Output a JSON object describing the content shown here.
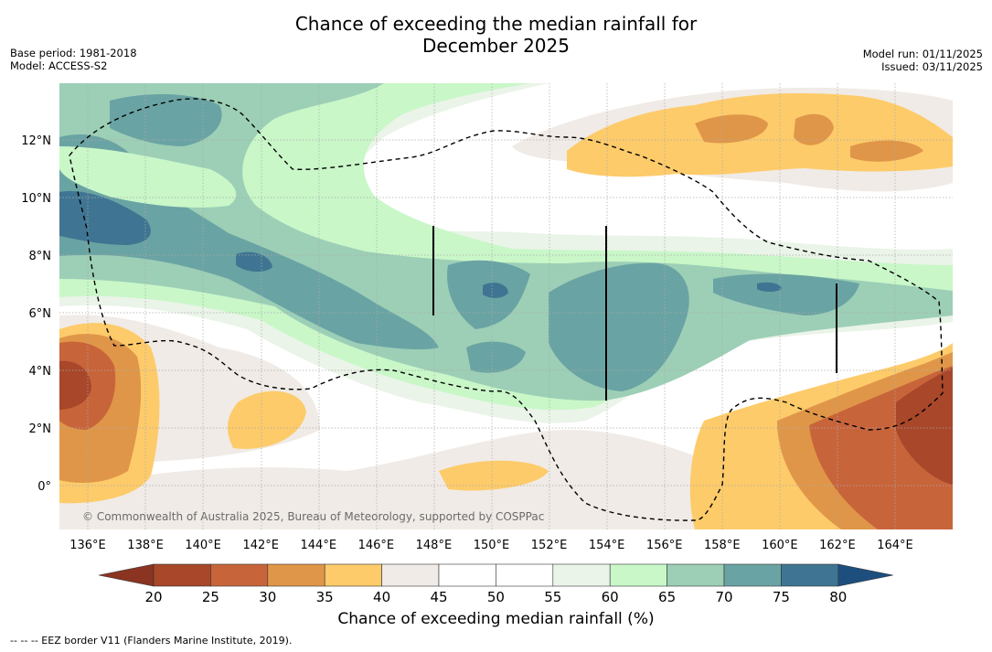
{
  "title_line1": "Chance of exceeding the median rainfall for",
  "title_line2": "December 2025",
  "base_period": "Base period: 1981-2018",
  "model": "Model: ACCESS-S2",
  "model_run": "Model run: 01/11/2025",
  "issued": "Issued: 03/11/2025",
  "copyright": "© Commonwealth of Australia 2025, Bureau of Meteorology, supported by COSPPac",
  "colorbar_label": "Chance of exceeding median rainfall (%)",
  "footnote": "-- -- -- EEZ border V11 (Flanders Marine Institute, 2019).",
  "lon_labels": [
    "136°E",
    "138°E",
    "140°E",
    "142°E",
    "144°E",
    "146°E",
    "148°E",
    "150°E",
    "152°E",
    "154°E",
    "156°E",
    "158°E",
    "160°E",
    "162°E",
    "164°E"
  ],
  "lat_labels": [
    "12°N",
    "10°N",
    "8°N",
    "6°N",
    "4°N",
    "2°N",
    "0°"
  ],
  "colorbar_ticks": [
    "20",
    "25",
    "30",
    "35",
    "40",
    "45",
    "50",
    "55",
    "60",
    "65",
    "70",
    "75",
    "80"
  ],
  "colorbar_colors": [
    "#a8472a",
    "#c8643a",
    "#e09648",
    "#fdcb6a",
    "#f0ebe6",
    "#ffffff",
    "#ffffff",
    "#eaf4e8",
    "#c9f7c8",
    "#9ccfb6",
    "#6aa3a3",
    "#3f7592"
  ],
  "extend_low_color": "#8a3421",
  "extend_high_color": "#1d4f7e",
  "palette": {
    "c20": "#a8472a",
    "c25": "#c8643a",
    "c30": "#e09648",
    "c35": "#fdcb6a",
    "c40": "#f0ebe6",
    "c55": "#eaf4e8",
    "c60": "#c9f7c8",
    "c65": "#9ccfb6",
    "c70": "#6aa3a3",
    "c75": "#3f7592"
  }
}
